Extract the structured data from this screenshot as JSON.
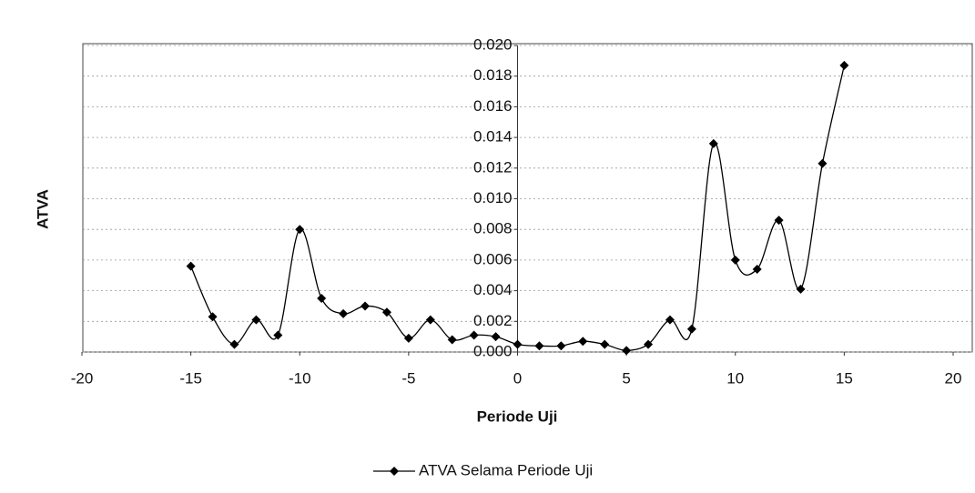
{
  "chart_data": {
    "type": "line",
    "x_label": "Periode Uji",
    "y_label": "ATVA",
    "x": [
      -15,
      -14,
      -13,
      -12,
      -11,
      -10,
      -9,
      -8,
      -7,
      -6,
      -5,
      -4,
      -3,
      -2,
      -1,
      0,
      1,
      2,
      3,
      4,
      5,
      6,
      7,
      8,
      9,
      10,
      11,
      12,
      13,
      14,
      15
    ],
    "series": [
      {
        "name": "ATVA Selama Periode Uji",
        "color": "#000000",
        "values": [
          0.0056,
          0.0023,
          0.0005,
          0.0021,
          0.0011,
          0.008,
          0.0035,
          0.0025,
          0.003,
          0.0026,
          0.0009,
          0.0021,
          0.0008,
          0.0011,
          0.001,
          0.0005,
          0.0004,
          0.0004,
          0.0007,
          0.0005,
          0.0001,
          0.0005,
          0.0021,
          0.0015,
          0.0136,
          0.006,
          0.0054,
          0.0086,
          0.0041,
          0.0123,
          0.0187
        ]
      }
    ],
    "xlim": [
      -20,
      20
    ],
    "xticks": [
      -20,
      -15,
      -10,
      -5,
      0,
      5,
      10,
      15,
      20
    ],
    "ylim": [
      0,
      0.02
    ],
    "yticks": [
      {
        "value": 0,
        "label": "0.000"
      },
      {
        "value": 0.002,
        "label": "0.002"
      },
      {
        "value": 0.004,
        "label": "0.004"
      },
      {
        "value": 0.006,
        "label": "0.006"
      },
      {
        "value": 0.008,
        "label": "0.008"
      },
      {
        "value": 0.01,
        "label": "0.010"
      },
      {
        "value": 0.012,
        "label": "0.012"
      },
      {
        "value": 0.014,
        "label": "0.014"
      },
      {
        "value": 0.016,
        "label": "0.016"
      },
      {
        "value": 0.018,
        "label": "0.018"
      },
      {
        "value": 0.02,
        "label": "0.020"
      }
    ],
    "grid": true,
    "smooth": true,
    "legend": "bottom"
  }
}
